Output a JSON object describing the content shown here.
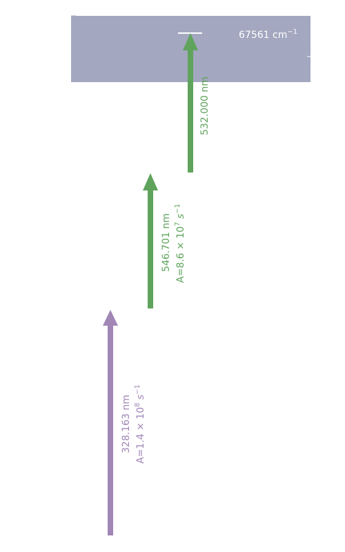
{
  "colors": {
    "continuum_band": "#a3a7bf",
    "continuum_text": "#ffffff",
    "green_arrow": "#5fa35c",
    "purple_arrow": "#a186b6"
  },
  "continuum": {
    "level_value": "67561",
    "level_unit": "cm",
    "level_unit_exp": "−1"
  },
  "transitions": [
    {
      "wavelength": "328.163 nm",
      "rate_prefix": "A=1.4 × 10",
      "rate_exp": "8",
      "rate_unit": " s",
      "rate_unit_exp": "−1",
      "color": "purple"
    },
    {
      "wavelength": "546.701 nm",
      "rate_prefix": "A=8.6 × 10",
      "rate_exp": "7",
      "rate_unit": " s",
      "rate_unit_exp": "−1",
      "color": "green"
    },
    {
      "wavelength": "532.000 nm",
      "color": "green"
    }
  ]
}
